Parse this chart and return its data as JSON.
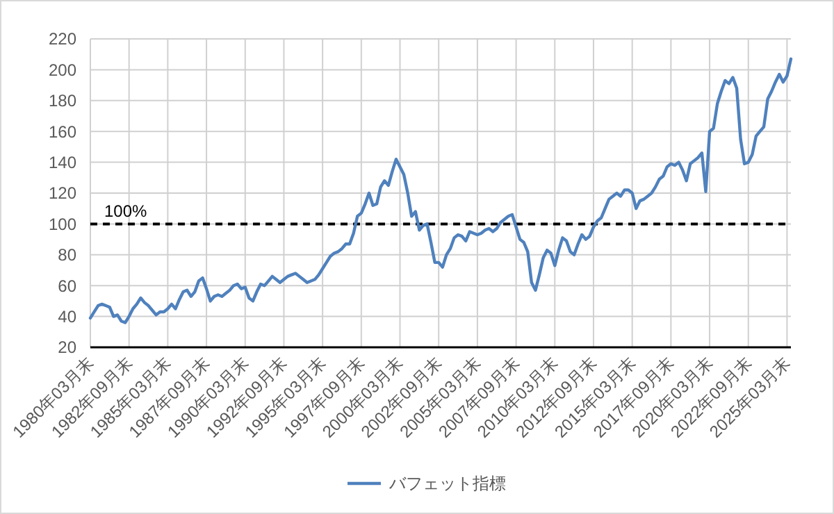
{
  "chart_data": {
    "type": "line",
    "categories": [
      "1980年03月末",
      null,
      null,
      null,
      null,
      null,
      null,
      null,
      null,
      null,
      "1982年09月末",
      null,
      null,
      null,
      null,
      null,
      null,
      null,
      null,
      null,
      "1985年03月末",
      null,
      null,
      null,
      null,
      null,
      null,
      null,
      null,
      null,
      "1987年09月末",
      null,
      null,
      null,
      null,
      null,
      null,
      null,
      null,
      null,
      "1990年03月末",
      null,
      null,
      null,
      null,
      null,
      null,
      null,
      null,
      null,
      "1992年09月末",
      null,
      null,
      null,
      null,
      null,
      null,
      null,
      null,
      null,
      "1995年03月末",
      null,
      null,
      null,
      null,
      null,
      null,
      null,
      null,
      null,
      "1997年09月末",
      null,
      null,
      null,
      null,
      null,
      null,
      null,
      null,
      null,
      "2000年03月末",
      null,
      null,
      null,
      null,
      null,
      null,
      null,
      null,
      null,
      "2002年09月末",
      null,
      null,
      null,
      null,
      null,
      null,
      null,
      null,
      null,
      "2005年03月末",
      null,
      null,
      null,
      null,
      null,
      null,
      null,
      null,
      null,
      "2007年09月末",
      null,
      null,
      null,
      null,
      null,
      null,
      null,
      null,
      null,
      "2010年03月末",
      null,
      null,
      null,
      null,
      null,
      null,
      null,
      null,
      null,
      "2012年09月末",
      null,
      null,
      null,
      null,
      null,
      null,
      null,
      null,
      null,
      "2015年03月末",
      null,
      null,
      null,
      null,
      null,
      null,
      null,
      null,
      null,
      "2017年09月末",
      null,
      null,
      null,
      null,
      null,
      null,
      null,
      null,
      null,
      "2020年03月末",
      null,
      null,
      null,
      null,
      null,
      null,
      null,
      null,
      null,
      "2022年09月末",
      null,
      null,
      null,
      null,
      null,
      null,
      null,
      null,
      null,
      "2025年03月末",
      null
    ],
    "series": [
      {
        "name": "バフェット指標",
        "color": "#4f81bd",
        "values": [
          39,
          43,
          47,
          48,
          47,
          46,
          40,
          41,
          37,
          36,
          40,
          45,
          48,
          52,
          49,
          47,
          44,
          41,
          43,
          43,
          45,
          48,
          45,
          51,
          56,
          57,
          53,
          56,
          63,
          65,
          58,
          50,
          53,
          54,
          53,
          55,
          57,
          60,
          61,
          58,
          59,
          52,
          50,
          56,
          61,
          60,
          63,
          66,
          64,
          62,
          64,
          66,
          67,
          68,
          66,
          64,
          62,
          63,
          64,
          67,
          71,
          75,
          79,
          81,
          82,
          84,
          87,
          87,
          94,
          105,
          107,
          113,
          120,
          112,
          113,
          124,
          128,
          125,
          134,
          142,
          137,
          132,
          120,
          105,
          108,
          96,
          99,
          100,
          88,
          75,
          75,
          72,
          80,
          84,
          91,
          93,
          92,
          89,
          95,
          94,
          93,
          94,
          96,
          97,
          95,
          97,
          101,
          103,
          105,
          106,
          98,
          90,
          88,
          82,
          62,
          57,
          67,
          78,
          83,
          81,
          73,
          83,
          91,
          89,
          82,
          80,
          87,
          93,
          90,
          92,
          98,
          102,
          104,
          110,
          116,
          118,
          120,
          118,
          122,
          122,
          120,
          110,
          115,
          116,
          118,
          120,
          124,
          129,
          131,
          137,
          139,
          138,
          140,
          135,
          128,
          139,
          141,
          143,
          146,
          121,
          160,
          162,
          178,
          186,
          193,
          191,
          195,
          188,
          155,
          139,
          140,
          145,
          157,
          160,
          163,
          181,
          186,
          192,
          197,
          192,
          196,
          207
        ]
      }
    ],
    "ylim": [
      20,
      220
    ],
    "yticks": [
      20,
      40,
      60,
      80,
      100,
      120,
      140,
      160,
      180,
      200,
      220
    ],
    "grid": true,
    "legend": "bottom",
    "marker": "none",
    "line_style": "solid",
    "ref_lines": [
      {
        "axis": "y",
        "value": 100,
        "label": "100%",
        "color": "#000000",
        "line_style": "dashed"
      }
    ]
  }
}
